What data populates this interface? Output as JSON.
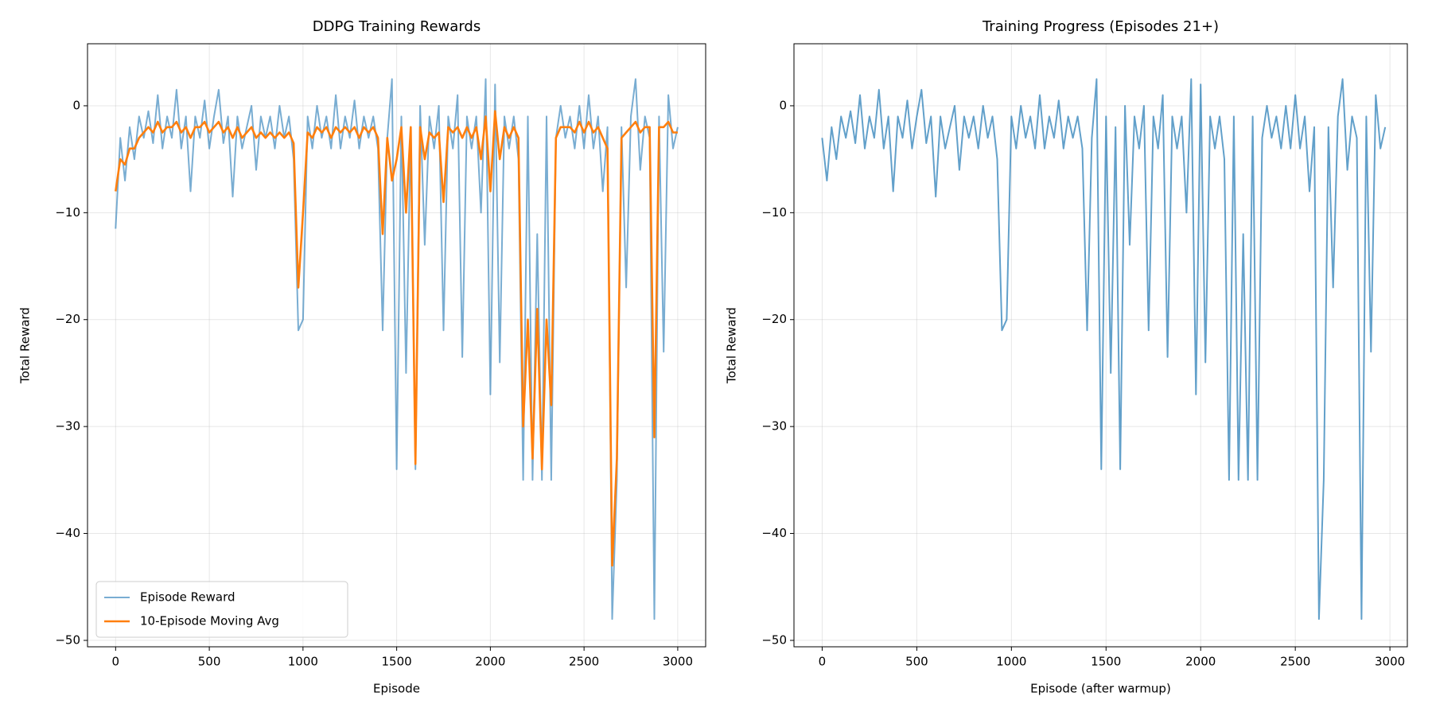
{
  "chart_data": [
    {
      "type": "line",
      "title": "DDPG Training Rewards",
      "xlabel": "Episode",
      "ylabel": "Total Reward",
      "x": [
        0,
        25,
        50,
        75,
        100,
        125,
        150,
        175,
        200,
        225,
        250,
        275,
        300,
        325,
        350,
        375,
        400,
        425,
        450,
        475,
        500,
        525,
        550,
        575,
        600,
        625,
        650,
        675,
        700,
        725,
        750,
        775,
        800,
        825,
        850,
        875,
        900,
        925,
        950,
        975,
        1000,
        1025,
        1050,
        1075,
        1100,
        1125,
        1150,
        1175,
        1200,
        1225,
        1250,
        1275,
        1300,
        1325,
        1350,
        1375,
        1400,
        1425,
        1450,
        1475,
        1500,
        1525,
        1550,
        1575,
        1600,
        1625,
        1650,
        1675,
        1700,
        1725,
        1750,
        1775,
        1800,
        1825,
        1850,
        1875,
        1900,
        1925,
        1950,
        1975,
        2000,
        2025,
        2050,
        2075,
        2100,
        2125,
        2150,
        2175,
        2200,
        2225,
        2250,
        2275,
        2300,
        2325,
        2350,
        2375,
        2400,
        2425,
        2450,
        2475,
        2500,
        2525,
        2550,
        2575,
        2600,
        2625,
        2650,
        2675,
        2700,
        2725,
        2750,
        2775,
        2800,
        2825,
        2850,
        2875,
        2900,
        2925,
        2950,
        2975,
        3000
      ],
      "series": [
        {
          "name": "Episode Reward",
          "color": "#1f77b4",
          "opacity": 0.6,
          "width": 2,
          "values": [
            -11.5,
            -3,
            -7,
            -2,
            -5,
            -1,
            -3,
            -0.5,
            -3.5,
            1,
            -4,
            -1,
            -3,
            1.5,
            -4,
            -1,
            -8,
            -1,
            -3,
            0.5,
            -4,
            -1,
            1.5,
            -3.5,
            -1,
            -8.5,
            -1,
            -4,
            -2,
            0,
            -6,
            -1,
            -3,
            -1,
            -4,
            0,
            -3,
            -1,
            -5,
            -21,
            -20,
            -1,
            -4,
            0,
            -3,
            -1,
            -4,
            1,
            -4,
            -1,
            -3,
            0.5,
            -4,
            -1,
            -3,
            -1,
            -4,
            -21,
            -3,
            2.5,
            -34,
            -1,
            -25,
            -2,
            -34,
            0,
            -13,
            -1,
            -4,
            0,
            -21,
            -1,
            -4,
            1,
            -23.5,
            -1,
            -4,
            -1,
            -10,
            2.5,
            -27,
            2,
            -24,
            -1,
            -4,
            -1,
            -5,
            -35,
            -1,
            -35,
            -12,
            -35,
            -1,
            -35,
            -3,
            0,
            -3,
            -1,
            -4,
            0,
            -4,
            1,
            -4,
            -1,
            -8,
            -2,
            -48,
            -35,
            -2,
            -17,
            -1,
            2.5,
            -6,
            -1,
            -3,
            -48,
            -1,
            -23,
            1,
            -4,
            -2
          ]
        },
        {
          "name": "10-Episode Moving Avg",
          "color": "#ff7f0e",
          "opacity": 1,
          "width": 2.6,
          "values": [
            -8,
            -5,
            -5.5,
            -4,
            -4,
            -3,
            -2.5,
            -2,
            -2.5,
            -1.5,
            -2.5,
            -2,
            -2,
            -1.5,
            -2.5,
            -2,
            -3,
            -2,
            -2,
            -1.5,
            -2.5,
            -2,
            -1.5,
            -2.5,
            -2,
            -3,
            -2,
            -3,
            -2.5,
            -2,
            -3,
            -2.5,
            -3,
            -2.5,
            -3,
            -2.5,
            -3,
            -2.5,
            -3.5,
            -17,
            -10,
            -2.5,
            -3,
            -2,
            -2.5,
            -2,
            -3,
            -2,
            -2.5,
            -2,
            -2.5,
            -2,
            -3,
            -2,
            -2.5,
            -2,
            -3,
            -12,
            -3,
            -7,
            -5,
            -2,
            -10,
            -2,
            -33.5,
            -2,
            -5,
            -2.5,
            -3,
            -2.5,
            -9,
            -2,
            -2.5,
            -2,
            -3,
            -2,
            -3,
            -2,
            -5,
            -1,
            -8,
            -0.5,
            -5,
            -2,
            -3,
            -2,
            -3,
            -30,
            -20,
            -33,
            -19,
            -34,
            -20,
            -28,
            -3,
            -2,
            -2,
            -2,
            -2.5,
            -1.5,
            -2.5,
            -1.5,
            -2.5,
            -2,
            -3,
            -4,
            -43,
            -33,
            -3,
            -2.5,
            -2,
            -1.5,
            -2.5,
            -2,
            -2,
            -31,
            -2,
            -2,
            -1.5,
            -2.5,
            -2.5
          ]
        }
      ],
      "xlim": [
        -150,
        3149
      ],
      "ylim": [
        -50.6,
        5.8
      ],
      "xticks": [
        0,
        500,
        1000,
        1500,
        2000,
        2500,
        3000
      ],
      "yticks": [
        {
          "value": -50,
          "label": "−50"
        },
        {
          "value": -40,
          "label": "−40"
        },
        {
          "value": -30,
          "label": "−30"
        },
        {
          "value": -20,
          "label": "−20"
        },
        {
          "value": -10,
          "label": "−10"
        },
        0
      ],
      "grid": true,
      "legend": "lower left"
    },
    {
      "type": "line",
      "title": "Training Progress (Episodes 21+)",
      "xlabel": "Episode (after warmup)",
      "ylabel": "Total Reward",
      "x": [
        0,
        25,
        50,
        75,
        100,
        125,
        150,
        175,
        200,
        225,
        250,
        275,
        300,
        325,
        350,
        375,
        400,
        425,
        450,
        475,
        500,
        525,
        550,
        575,
        600,
        625,
        650,
        675,
        700,
        725,
        750,
        775,
        800,
        825,
        850,
        875,
        900,
        925,
        950,
        975,
        1000,
        1025,
        1050,
        1075,
        1100,
        1125,
        1150,
        1175,
        1200,
        1225,
        1250,
        1275,
        1300,
        1325,
        1350,
        1375,
        1400,
        1425,
        1450,
        1475,
        1500,
        1525,
        1550,
        1575,
        1600,
        1625,
        1650,
        1675,
        1700,
        1725,
        1750,
        1775,
        1800,
        1825,
        1850,
        1875,
        1900,
        1925,
        1950,
        1975,
        2000,
        2025,
        2050,
        2075,
        2100,
        2125,
        2150,
        2175,
        2200,
        2225,
        2250,
        2275,
        2300,
        2325,
        2350,
        2375,
        2400,
        2425,
        2450,
        2475,
        2500,
        2525,
        2550,
        2575,
        2600,
        2625,
        2650,
        2675,
        2700,
        2725,
        2750,
        2775,
        2800,
        2825,
        2850,
        2875,
        2900,
        2925,
        2950,
        2975
      ],
      "series": [
        {
          "name": "Episode Reward",
          "color": "#1f77b4",
          "opacity": 0.7,
          "width": 2,
          "values": [
            -3,
            -7,
            -2,
            -5,
            -1,
            -3,
            -0.5,
            -3.5,
            1,
            -4,
            -1,
            -3,
            1.5,
            -4,
            -1,
            -8,
            -1,
            -3,
            0.5,
            -4,
            -1,
            1.5,
            -3.5,
            -1,
            -8.5,
            -1,
            -4,
            -2,
            0,
            -6,
            -1,
            -3,
            -1,
            -4,
            0,
            -3,
            -1,
            -5,
            -21,
            -20,
            -1,
            -4,
            0,
            -3,
            -1,
            -4,
            1,
            -4,
            -1,
            -3,
            0.5,
            -4,
            -1,
            -3,
            -1,
            -4,
            -21,
            -3,
            2.5,
            -34,
            -1,
            -25,
            -2,
            -34,
            0,
            -13,
            -1,
            -4,
            0,
            -21,
            -1,
            -4,
            1,
            -23.5,
            -1,
            -4,
            -1,
            -10,
            2.5,
            -27,
            2,
            -24,
            -1,
            -4,
            -1,
            -5,
            -35,
            -1,
            -35,
            -12,
            -35,
            -1,
            -35,
            -3,
            0,
            -3,
            -1,
            -4,
            0,
            -4,
            1,
            -4,
            -1,
            -8,
            -2,
            -48,
            -35,
            -2,
            -17,
            -1,
            2.5,
            -6,
            -1,
            -3,
            -48,
            -1,
            -23,
            1,
            -4,
            -2
          ]
        }
      ],
      "xlim": [
        -149,
        3092
      ],
      "ylim": [
        -50.6,
        5.8
      ],
      "xticks": [
        0,
        500,
        1000,
        1500,
        2000,
        2500,
        3000
      ],
      "yticks": [
        {
          "value": -50,
          "label": "−50"
        },
        {
          "value": -40,
          "label": "−40"
        },
        {
          "value": -30,
          "label": "−30"
        },
        {
          "value": -20,
          "label": "−20"
        },
        {
          "value": -10,
          "label": "−10"
        },
        0
      ],
      "grid": true
    }
  ]
}
